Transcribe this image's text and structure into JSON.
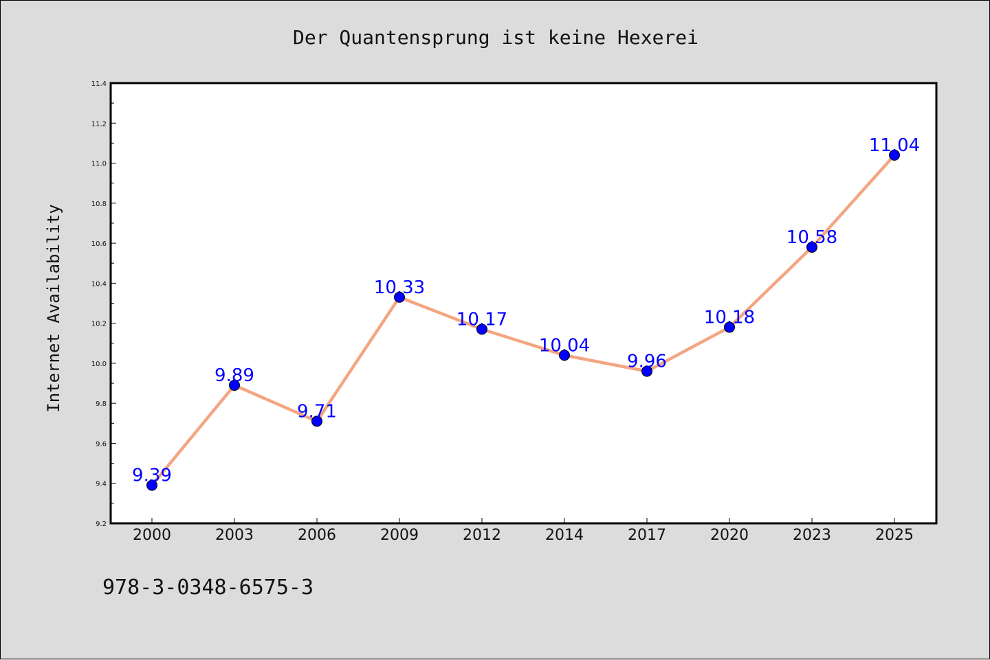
{
  "footer": {
    "isbn": "978-3-0348-6575-3"
  },
  "chart_data": {
    "type": "line",
    "title": "Der Quantensprung ist keine Hexerei",
    "xlabel": "",
    "ylabel": "Internet Availability",
    "categories": [
      "2000",
      "2003",
      "2006",
      "2009",
      "2012",
      "2014",
      "2017",
      "2020",
      "2023",
      "2025"
    ],
    "values": [
      9.39,
      9.89,
      9.71,
      10.33,
      10.17,
      10.04,
      9.96,
      10.18,
      10.58,
      11.04
    ],
    "data_labels": [
      "9.39",
      "9.89",
      "9.71",
      "10.33",
      "10.17",
      "10.04",
      "9.96",
      "10.18",
      "10.58",
      "11.04"
    ],
    "yticks": [
      "9.2",
      "9.4",
      "9.6",
      "9.8",
      "10.0",
      "10.2",
      "10.4",
      "10.6",
      "10.8",
      "11.0",
      "11.2",
      "11.4"
    ],
    "ylim": [
      9.2,
      11.4
    ],
    "grid": false,
    "colors": {
      "line": "#f4a582",
      "marker": "#0000ff",
      "marker_edge": "#000000",
      "label": "#0000ff",
      "background": "#dcdcdc",
      "plot_background": "#ffffff"
    }
  }
}
